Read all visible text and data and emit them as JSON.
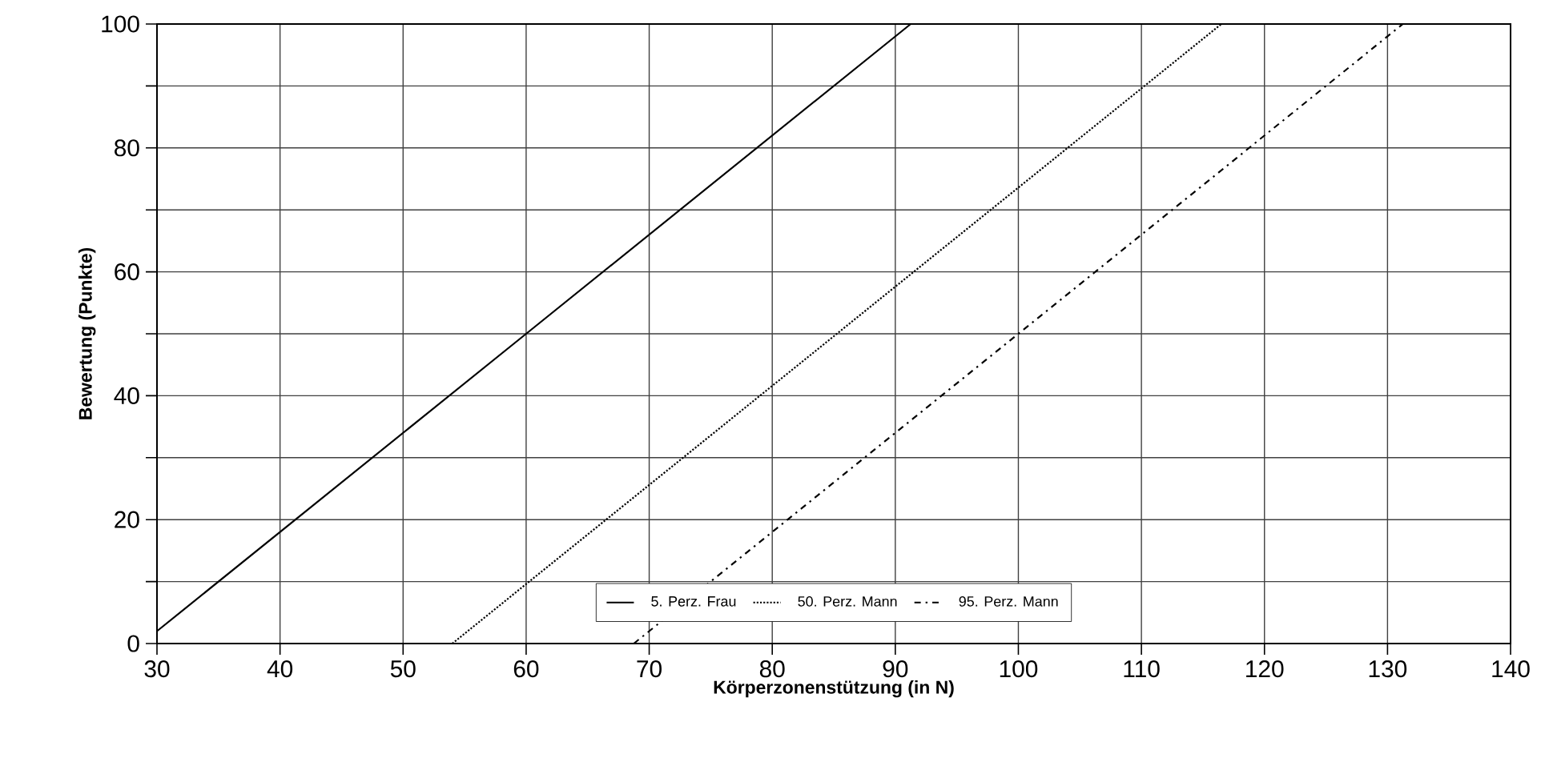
{
  "chart_data": {
    "type": "line",
    "xlabel": "Körperzonenstützung (in N)",
    "ylabel": "Bewertung (Punkte)",
    "xlim": [
      30,
      140
    ],
    "xticks": [
      30,
      40,
      50,
      60,
      70,
      80,
      90,
      100,
      110,
      120,
      130,
      140
    ],
    "ylim": [
      0,
      100
    ],
    "yticks": [
      0,
      {
        "value": 10,
        "label": null
      },
      20,
      {
        "value": 30,
        "label": null
      },
      40,
      {
        "value": 50,
        "label": null
      },
      60,
      {
        "value": 70,
        "label": null
      },
      80,
      {
        "value": 90,
        "label": null
      },
      100
    ],
    "grid": true,
    "legend": "bottom",
    "marker": "none",
    "series": [
      {
        "name": "5. Perz. Frau",
        "color": "#000000",
        "line_style": "solid",
        "x": [
          30,
          60,
          91.25
        ],
        "values": [
          2,
          50,
          100
        ]
      },
      {
        "name": "50. Perz. Mann",
        "color": "#000000",
        "line_style": "dotted",
        "x": [
          54,
          80,
          116.5
        ],
        "values": [
          0,
          41.6,
          100
        ]
      },
      {
        "name": "95. Perz. Mann",
        "color": "#000000",
        "line_style": "dashdot",
        "x": [
          68.75,
          100,
          131.25
        ],
        "values": [
          0,
          50,
          100
        ]
      }
    ]
  }
}
